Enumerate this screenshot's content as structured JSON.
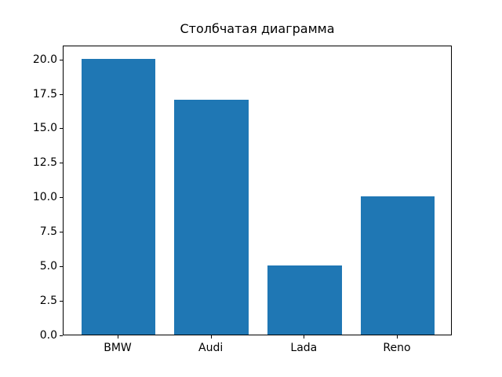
{
  "chart_data": {
    "type": "bar",
    "title": "Столбчатая диаграмма",
    "categories": [
      "BMW",
      "Audi",
      "Lada",
      "Reno"
    ],
    "values": [
      20,
      17,
      5,
      10
    ],
    "xlabel": "",
    "ylabel": "",
    "ytick_labels": [
      "0.0",
      "2.5",
      "5.0",
      "7.5",
      "10.0",
      "12.5",
      "15.0",
      "17.5",
      "20.0"
    ],
    "ytick_values": [
      0,
      2.5,
      5,
      7.5,
      10,
      12.5,
      15,
      17.5,
      20
    ],
    "ylim": [
      0,
      21
    ],
    "xlim": [
      -0.59,
      3.59
    ],
    "bar_width_units": 0.8,
    "bar_color": "#1f77b4",
    "grid": false,
    "legend_position": "none",
    "frame_color": "#000000",
    "background_color": "#ffffff"
  }
}
